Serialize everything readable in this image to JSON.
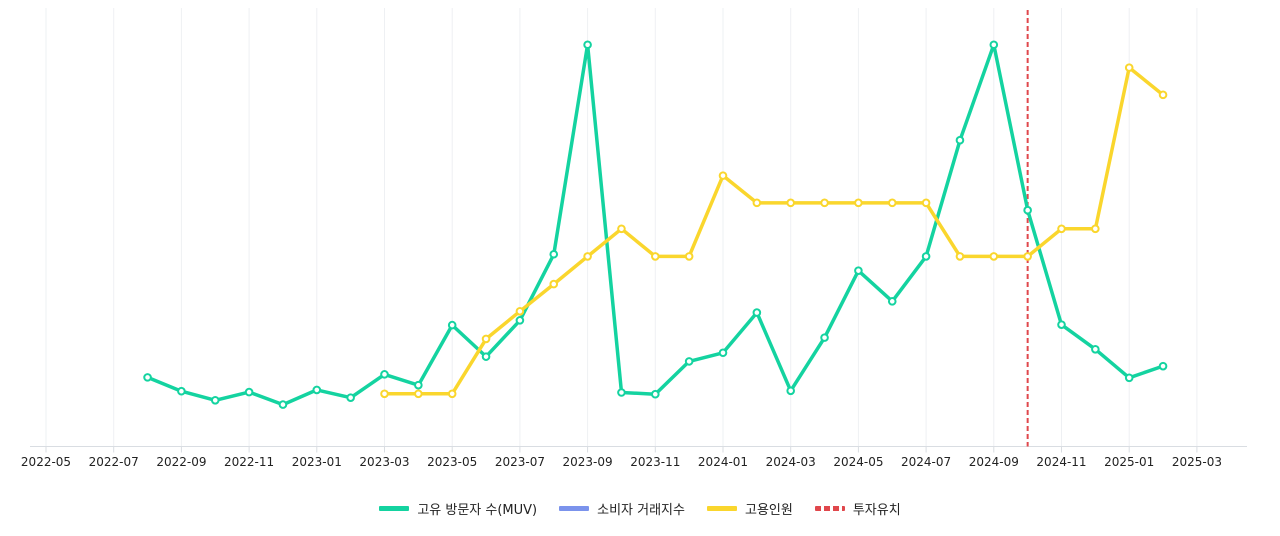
{
  "chart_data": {
    "type": "line",
    "x_ticks": [
      "2022-05",
      "2022-07",
      "2022-09",
      "2022-11",
      "2023-01",
      "2023-03",
      "2023-05",
      "2023-07",
      "2023-09",
      "2023-11",
      "2024-01",
      "2024-03",
      "2024-05",
      "2024-07",
      "2024-09",
      "2024-11",
      "2025-01",
      "2025-03"
    ],
    "x_range": [
      "2022-05",
      "2025-04"
    ],
    "y_range": [
      0,
      100
    ],
    "grid": "vertical",
    "legend_position": "bottom-center",
    "series": [
      {
        "name": "고유 방문자 수(MUV)",
        "color": "#14d3a0",
        "x": [
          "2022-08",
          "2022-09",
          "2022-10",
          "2022-11",
          "2022-12",
          "2023-01",
          "2023-02",
          "2023-03",
          "2023-04",
          "2023-05",
          "2023-06",
          "2023-07",
          "2023-08",
          "2023-09",
          "2023-10",
          "2023-11",
          "2023-12",
          "2024-01",
          "2024-02",
          "2024-03",
          "2024-04",
          "2024-05",
          "2024-06",
          "2024-07",
          "2024-08",
          "2024-09",
          "2024-10",
          "2024-11",
          "2024-12",
          "2025-01",
          "2025-02"
        ],
        "values": [
          16.0,
          12.8,
          10.7,
          12.6,
          9.7,
          13.1,
          11.3,
          16.7,
          14.2,
          28.1,
          20.8,
          29.2,
          44.5,
          93.0,
          12.5,
          12.1,
          19.7,
          21.7,
          31.0,
          12.9,
          25.2,
          40.7,
          33.6,
          44.0,
          70.9,
          93.0,
          54.7,
          28.2,
          22.5,
          15.9,
          18.6
        ]
      },
      {
        "name": "소비자 거래지수",
        "color": "#7b93ec",
        "x": [],
        "values": []
      },
      {
        "name": "고용인원",
        "color": "#fad62d",
        "x": [
          "2023-03",
          "2023-04",
          "2023-05",
          "2023-06",
          "2023-07",
          "2023-08",
          "2023-09",
          "2023-10",
          "2023-11",
          "2023-12",
          "2024-01",
          "2024-02",
          "2024-03",
          "2024-04",
          "2024-05",
          "2024-06",
          "2024-07",
          "2024-08",
          "2024-09",
          "2024-10",
          "2024-11",
          "2024-12",
          "2025-01",
          "2025-02"
        ],
        "values": [
          12.2,
          12.2,
          12.2,
          24.9,
          31.3,
          37.6,
          44.0,
          50.4,
          44.0,
          44.0,
          62.7,
          56.4,
          56.4,
          56.4,
          56.4,
          56.4,
          56.4,
          44.0,
          44.0,
          44.0,
          50.4,
          50.4,
          87.7,
          81.4
        ]
      }
    ],
    "event_line": {
      "name": "투자유치",
      "color": "#e0474c",
      "x": "2024-10"
    }
  },
  "legend": [
    {
      "label": "고유 방문자 수(MUV)",
      "color": "#14d3a0",
      "style": "solid"
    },
    {
      "label": "소비자 거래지수",
      "color": "#7b93ec",
      "style": "solid"
    },
    {
      "label": "고용인원",
      "color": "#fad62d",
      "style": "solid"
    },
    {
      "label": "투자유치",
      "color": "#e0474c",
      "style": "dashed"
    }
  ]
}
